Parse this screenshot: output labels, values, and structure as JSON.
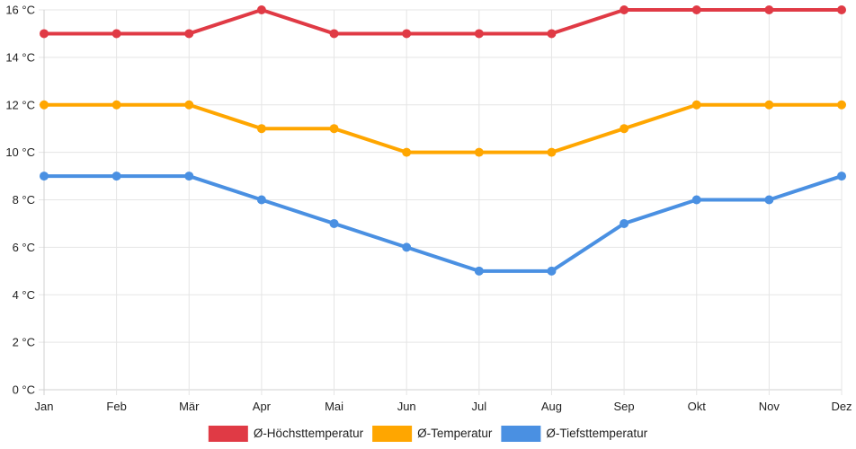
{
  "chart_data": {
    "type": "line",
    "categories": [
      "Jan",
      "Feb",
      "Mär",
      "Apr",
      "Mai",
      "Jun",
      "Jul",
      "Aug",
      "Sep",
      "Okt",
      "Nov",
      "Dez"
    ],
    "series": [
      {
        "name": "Ø-Höchsttemperatur",
        "color": "#e03a45",
        "values": [
          15,
          15,
          15,
          16,
          15,
          15,
          15,
          15,
          16,
          16,
          16,
          16
        ]
      },
      {
        "name": "Ø-Temperatur",
        "color": "#ffa600",
        "values": [
          12,
          12,
          12,
          11,
          11,
          10,
          10,
          10,
          11,
          12,
          12,
          12
        ]
      },
      {
        "name": "Ø-Tiefsttemperatur",
        "color": "#4a90e2",
        "values": [
          9,
          9,
          9,
          8,
          7,
          6,
          5,
          5,
          7,
          8,
          8,
          9
        ]
      }
    ],
    "ylim": [
      0,
      16
    ],
    "yticks": [
      0,
      2,
      4,
      6,
      8,
      10,
      12,
      14,
      16
    ],
    "y_unit": "°C",
    "grid": true,
    "legend_position": "bottom-center"
  }
}
